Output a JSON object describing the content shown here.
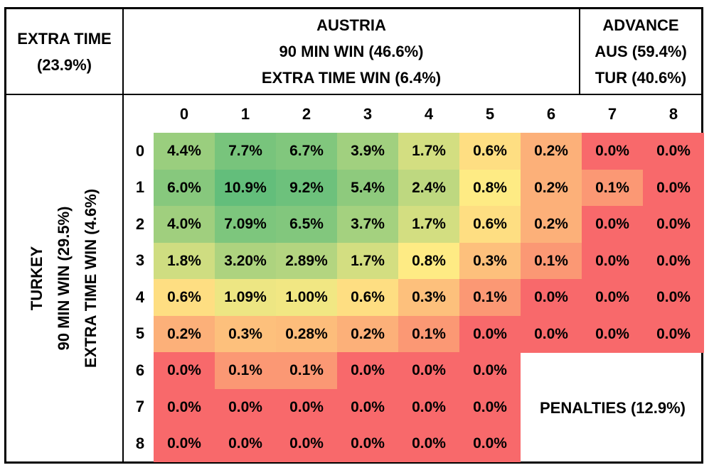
{
  "header": {
    "extra_time": [
      "EXTRA TIME",
      "(23.9%)"
    ],
    "austria": [
      "AUSTRIA",
      "90 MIN WIN (46.6%)",
      "EXTRA TIME WIN (6.4%)"
    ],
    "advance": [
      "ADVANCE",
      "AUS (59.4%)",
      "TUR (40.6%)"
    ]
  },
  "side": [
    "TURKEY",
    "90 MIN WIN (29.5%)",
    "EXTRA TIME WIN (4.6%)"
  ],
  "penalties": "PENALTIES (12.9%)",
  "colors": {
    "green": "#63be7b",
    "yellow": "#ffeb84",
    "red": "#f8696b",
    "border": "#000000"
  },
  "chart_data": {
    "type": "heatmap",
    "x_categories": [
      "0",
      "1",
      "2",
      "3",
      "4",
      "5",
      "6",
      "7",
      "8"
    ],
    "y_categories": [
      "0",
      "1",
      "2",
      "3",
      "4",
      "5",
      "6",
      "7",
      "8"
    ],
    "cells": [
      [
        "4.4%",
        "7.7%",
        "6.7%",
        "3.9%",
        "1.7%",
        "0.6%",
        "0.2%",
        "0.0%",
        "0.0%"
      ],
      [
        "6.0%",
        "10.9%",
        "9.2%",
        "5.4%",
        "2.4%",
        "0.8%",
        "0.2%",
        "0.1%",
        "0.0%"
      ],
      [
        "4.0%",
        "7.09%",
        "6.5%",
        "3.7%",
        "1.7%",
        "0.6%",
        "0.2%",
        "0.0%",
        "0.0%"
      ],
      [
        "1.8%",
        "3.20%",
        "2.89%",
        "1.7%",
        "0.8%",
        "0.3%",
        "0.1%",
        "0.0%",
        "0.0%"
      ],
      [
        "0.6%",
        "1.09%",
        "1.00%",
        "0.6%",
        "0.3%",
        "0.1%",
        "0.0%",
        "0.0%",
        "0.0%"
      ],
      [
        "0.2%",
        "0.3%",
        "0.28%",
        "0.2%",
        "0.1%",
        "0.0%",
        "0.0%",
        "0.0%",
        "0.0%"
      ],
      [
        "0.0%",
        "0.1%",
        "0.1%",
        "0.0%",
        "0.0%",
        "0.0%",
        null,
        null,
        null
      ],
      [
        "0.0%",
        "0.0%",
        "0.0%",
        "0.0%",
        "0.0%",
        "0.0%",
        null,
        null,
        null
      ],
      [
        "0.0%",
        "0.0%",
        "0.0%",
        "0.0%",
        "0.0%",
        "0.0%",
        null,
        null,
        null
      ]
    ]
  }
}
